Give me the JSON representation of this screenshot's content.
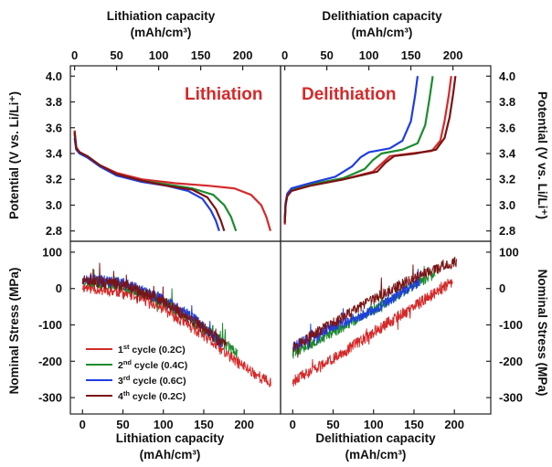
{
  "chart_data": [
    {
      "id": "lithiation_potential",
      "type": "line",
      "xlabel_top": [
        "Lithiation capacity",
        "(mAh/cm³)"
      ],
      "ylabel_left": "Potential (V vs. Li/Li⁺)",
      "inset_label": "Lithiation",
      "xlim": [
        -5,
        245
      ],
      "ylim": [
        2.72,
        4.08
      ],
      "x_ticks": [
        "0",
        "50",
        "100",
        "150",
        "200"
      ],
      "y_ticks": [
        "2.8",
        "3.0",
        "3.2",
        "3.4",
        "3.6",
        "3.8",
        "4.0"
      ],
      "series": [
        {
          "color": "#d42a2a",
          "points": [
            [
              0,
              3.58
            ],
            [
              2,
              3.45
            ],
            [
              6,
              3.41
            ],
            [
              15,
              3.38
            ],
            [
              30,
              3.31
            ],
            [
              50,
              3.25
            ],
            [
              80,
              3.2
            ],
            [
              120,
              3.17
            ],
            [
              160,
              3.15
            ],
            [
              190,
              3.13
            ],
            [
              210,
              3.08
            ],
            [
              222,
              3.0
            ],
            [
              228,
              2.91
            ],
            [
              233,
              2.8
            ]
          ]
        },
        {
          "color": "#1d8c2e",
          "points": [
            [
              0,
              3.55
            ],
            [
              2,
              3.44
            ],
            [
              6,
              3.41
            ],
            [
              15,
              3.38
            ],
            [
              30,
              3.31
            ],
            [
              50,
              3.23
            ],
            [
              80,
              3.19
            ],
            [
              110,
              3.16
            ],
            [
              140,
              3.13
            ],
            [
              165,
              3.08
            ],
            [
              178,
              3.0
            ],
            [
              186,
              2.91
            ],
            [
              192,
              2.8
            ]
          ]
        },
        {
          "color": "#1f3ee0",
          "points": [
            [
              0,
              3.52
            ],
            [
              2,
              3.43
            ],
            [
              6,
              3.4
            ],
            [
              15,
              3.37
            ],
            [
              30,
              3.3
            ],
            [
              50,
              3.23
            ],
            [
              80,
              3.18
            ],
            [
              110,
              3.15
            ],
            [
              135,
              3.11
            ],
            [
              152,
              3.05
            ],
            [
              162,
              2.96
            ],
            [
              168,
              2.88
            ],
            [
              172,
              2.8
            ]
          ]
        },
        {
          "color": "#7a1414",
          "points": [
            [
              0,
              3.57
            ],
            [
              2,
              3.44
            ],
            [
              6,
              3.41
            ],
            [
              15,
              3.38
            ],
            [
              30,
              3.31
            ],
            [
              50,
              3.24
            ],
            [
              80,
              3.19
            ],
            [
              110,
              3.15
            ],
            [
              140,
              3.12
            ],
            [
              158,
              3.06
            ],
            [
              168,
              2.97
            ],
            [
              174,
              2.88
            ],
            [
              178,
              2.8
            ]
          ]
        }
      ]
    },
    {
      "id": "delithiation_potential",
      "type": "line",
      "xlabel_top": [
        "Delithiation capacity",
        "(mAh/cm³)"
      ],
      "ylabel_right": "Potential (V vs. Li/Li⁺)",
      "inset_label": "Delithiation",
      "xlim": [
        -5,
        245
      ],
      "ylim": [
        2.72,
        4.08
      ],
      "x_ticks": [
        "0",
        "50",
        "100",
        "150",
        "200"
      ],
      "y_ticks": [
        "2.8",
        "3.0",
        "3.2",
        "3.4",
        "3.6",
        "3.8",
        "4.0"
      ],
      "series": [
        {
          "color": "#d42a2a",
          "points": [
            [
              0,
              2.85
            ],
            [
              1,
              3.0
            ],
            [
              3,
              3.08
            ],
            [
              8,
              3.12
            ],
            [
              30,
              3.16
            ],
            [
              70,
              3.2
            ],
            [
              105,
              3.26
            ],
            [
              115,
              3.32
            ],
            [
              125,
              3.38
            ],
            [
              150,
              3.4
            ],
            [
              175,
              3.42
            ],
            [
              185,
              3.5
            ],
            [
              190,
              3.65
            ],
            [
              195,
              3.85
            ],
            [
              198,
              4.0
            ]
          ]
        },
        {
          "color": "#1d8c2e",
          "points": [
            [
              0,
              2.88
            ],
            [
              1,
              3.01
            ],
            [
              3,
              3.08
            ],
            [
              8,
              3.12
            ],
            [
              30,
              3.16
            ],
            [
              70,
              3.21
            ],
            [
              95,
              3.28
            ],
            [
              105,
              3.35
            ],
            [
              115,
              3.4
            ],
            [
              140,
              3.43
            ],
            [
              158,
              3.48
            ],
            [
              167,
              3.62
            ],
            [
              172,
              3.82
            ],
            [
              176,
              4.0
            ]
          ]
        },
        {
          "color": "#1f3ee0",
          "points": [
            [
              0,
              2.9
            ],
            [
              1,
              3.02
            ],
            [
              3,
              3.09
            ],
            [
              8,
              3.13
            ],
            [
              30,
              3.17
            ],
            [
              60,
              3.22
            ],
            [
              80,
              3.3
            ],
            [
              90,
              3.37
            ],
            [
              100,
              3.41
            ],
            [
              125,
              3.44
            ],
            [
              140,
              3.5
            ],
            [
              150,
              3.65
            ],
            [
              155,
              3.85
            ],
            [
              158,
              4.0
            ]
          ]
        },
        {
          "color": "#7a1414",
          "points": [
            [
              0,
              2.86
            ],
            [
              1,
              3.0
            ],
            [
              3,
              3.07
            ],
            [
              8,
              3.11
            ],
            [
              30,
              3.15
            ],
            [
              70,
              3.2
            ],
            [
              110,
              3.26
            ],
            [
              120,
              3.33
            ],
            [
              130,
              3.38
            ],
            [
              155,
              3.4
            ],
            [
              180,
              3.43
            ],
            [
              190,
              3.52
            ],
            [
              196,
              3.68
            ],
            [
              200,
              3.85
            ],
            [
              203,
              4.0
            ]
          ]
        }
      ]
    },
    {
      "id": "lithiation_stress",
      "type": "line",
      "xlabel": [
        "Lithiation capacity",
        "(mAh/cm³)"
      ],
      "ylabel_left": "Nominal Stress (MPa)",
      "xlim": [
        -15,
        245
      ],
      "ylim": [
        -345,
        130
      ],
      "x_ticks": [
        "0",
        "50",
        "100",
        "150",
        "200"
      ],
      "y_ticks": [
        "100",
        "0",
        "-100",
        "-200",
        "-300"
      ],
      "legend": [
        {
          "label": "1st cycle (0.2C)",
          "sup": "st",
          "color": "#d42a2a"
        },
        {
          "label": "2nd cycle (0.4C)",
          "sup": "nd",
          "color": "#1d8c2e"
        },
        {
          "label": "3rd cycle (0.6C)",
          "sup": "rd",
          "color": "#1f3ee0"
        },
        {
          "label": "4th cycle (0.2C)",
          "sup": "th",
          "color": "#7a1414"
        }
      ],
      "series": [
        {
          "color": "#d42a2a",
          "noise": 16,
          "seed": 11,
          "points": [
            [
              0,
              5
            ],
            [
              50,
              -10
            ],
            [
              100,
              -55
            ],
            [
              150,
              -130
            ],
            [
              190,
              -200
            ],
            [
              233,
              -262
            ]
          ]
        },
        {
          "color": "#1d8c2e",
          "noise": 15,
          "seed": 23,
          "points": [
            [
              0,
              22
            ],
            [
              50,
              10
            ],
            [
              100,
              -35
            ],
            [
              150,
              -110
            ],
            [
              192,
              -178
            ]
          ]
        },
        {
          "color": "#1f3ee0",
          "noise": 15,
          "seed": 37,
          "points": [
            [
              0,
              28
            ],
            [
              50,
              15
            ],
            [
              100,
              -30
            ],
            [
              140,
              -85
            ],
            [
              172,
              -150
            ]
          ]
        },
        {
          "color": "#7a1414",
          "noise": 16,
          "seed": 51,
          "points": [
            [
              0,
              20
            ],
            [
              50,
              12
            ],
            [
              100,
              -35
            ],
            [
              150,
              -110
            ],
            [
              178,
              -160
            ]
          ]
        }
      ]
    },
    {
      "id": "delithiation_stress",
      "type": "line",
      "xlabel": [
        "Delithiation capacity",
        "(mAh/cm³)"
      ],
      "ylabel_right": "Nominal Stress (MPa)",
      "xlim": [
        -15,
        245
      ],
      "ylim": [
        -345,
        130
      ],
      "x_ticks": [
        "0",
        "50",
        "100",
        "150",
        "200"
      ],
      "y_ticks": [
        "100",
        "0",
        "-100",
        "-200",
        "-300"
      ],
      "series": [
        {
          "color": "#d42a2a",
          "noise": 16,
          "seed": 61,
          "points": [
            [
              0,
              -255
            ],
            [
              50,
              -195
            ],
            [
              100,
              -120
            ],
            [
              150,
              -50
            ],
            [
              198,
              20
            ]
          ]
        },
        {
          "color": "#1d8c2e",
          "noise": 14,
          "seed": 73,
          "points": [
            [
              0,
              -180
            ],
            [
              50,
              -120
            ],
            [
              100,
              -60
            ],
            [
              150,
              10
            ],
            [
              176,
              40
            ]
          ]
        },
        {
          "color": "#1f3ee0",
          "noise": 14,
          "seed": 87,
          "points": [
            [
              0,
              -160
            ],
            [
              50,
              -105
            ],
            [
              100,
              -60
            ],
            [
              150,
              10
            ],
            [
              158,
              20
            ]
          ]
        },
        {
          "color": "#7a1414",
          "noise": 15,
          "seed": 97,
          "points": [
            [
              0,
              -160
            ],
            [
              50,
              -95
            ],
            [
              100,
              -30
            ],
            [
              150,
              30
            ],
            [
              203,
              75
            ]
          ]
        }
      ]
    }
  ]
}
